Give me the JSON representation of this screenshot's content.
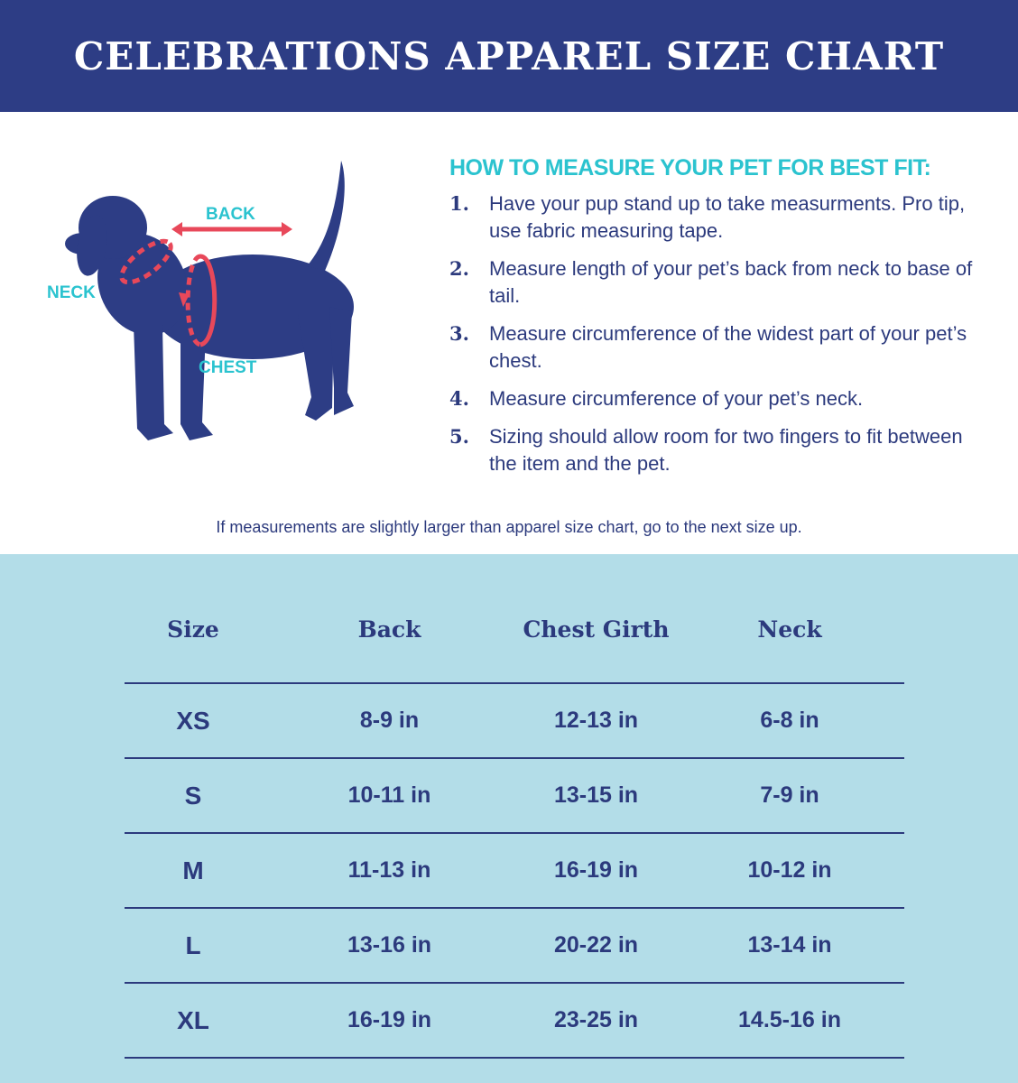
{
  "banner": {
    "title": "CELEBRATIONS APPAREL SIZE CHART"
  },
  "diagram": {
    "back_label": "BACK",
    "neck_label": "NECK",
    "chest_label": "CHEST"
  },
  "howto": {
    "title": "HOW TO MEASURE YOUR PET FOR BEST FIT:",
    "steps": [
      {
        "num": "1.",
        "text": "Have your pup stand up to take measurments. Pro tip, use fabric measuring tape."
      },
      {
        "num": "2.",
        "text": "Measure length of your pet’s back from neck to base of tail."
      },
      {
        "num": "3.",
        "text": "Measure circumference of the widest part of your pet’s chest."
      },
      {
        "num": "4.",
        "text": "Measure circumference of your pet’s neck."
      },
      {
        "num": "5.",
        "text": "Sizing should allow room for two fingers to fit between the item and the pet."
      }
    ]
  },
  "note": "If measurements are slightly larger than apparel size chart, go to the next size up.",
  "table": {
    "headers": [
      "Size",
      "Back",
      "Chest Girth",
      "Neck"
    ],
    "rows": [
      [
        "XS",
        "8-9 in",
        "12-13 in",
        "6-8 in"
      ],
      [
        "S",
        "10-11 in",
        "13-15 in",
        "7-9 in"
      ],
      [
        "M",
        "11-13 in",
        "16-19 in",
        "10-12 in"
      ],
      [
        "L",
        "13-16 in",
        "20-22 in",
        "13-14 in"
      ],
      [
        "XL",
        "16-19 in",
        "23-25 in",
        "14.5-16 in"
      ]
    ]
  },
  "colors": {
    "navy": "#2d3d85",
    "teal": "#2bc3cf",
    "red": "#e8485a",
    "light_blue": "#b3dde8"
  }
}
